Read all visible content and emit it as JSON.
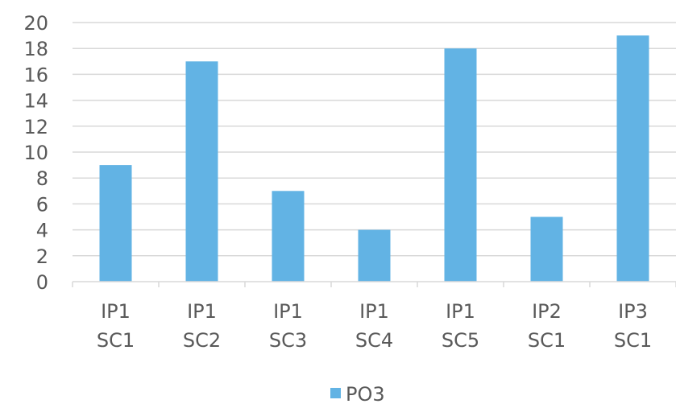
{
  "chart_data": {
    "type": "bar",
    "title": "",
    "xlabel": "",
    "ylabel": "",
    "categories": [
      [
        "IP1",
        "SC1"
      ],
      [
        "IP1",
        "SC2"
      ],
      [
        "IP1",
        "SC3"
      ],
      [
        "IP1",
        "SC4"
      ],
      [
        "IP1",
        "SC5"
      ],
      [
        "IP2",
        "SC1"
      ],
      [
        "IP3",
        "SC1"
      ]
    ],
    "series": [
      {
        "name": "PO3",
        "values": [
          9,
          17,
          7,
          4,
          18,
          5,
          19
        ],
        "color": "#62b3e4"
      }
    ],
    "ylim": [
      0,
      20
    ],
    "yticks": [
      0,
      2,
      4,
      6,
      8,
      10,
      12,
      14,
      16,
      18,
      20
    ],
    "grid": true,
    "legend": "bottom-center"
  }
}
